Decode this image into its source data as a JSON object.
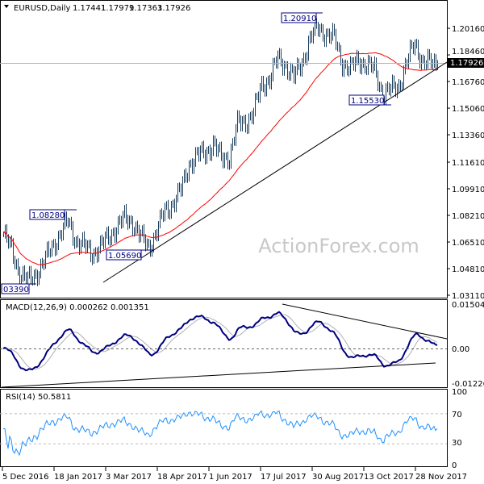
{
  "header": {
    "symbol": "EURUSD,Daily",
    "open": "1.17441",
    "high": "1.17979",
    "low": "1.17363",
    "close": "1.17926"
  },
  "watermark": "ActionForex.com",
  "current_price_label": "1.17926",
  "annotations": [
    {
      "label": "1.20910",
      "date": "Sep 2017"
    },
    {
      "label": "1.08280",
      "date": "Feb 2017"
    },
    {
      "label": "1.05690",
      "date": "Apr 2017"
    },
    {
      "label": "03390",
      "date": "Jan 2017"
    },
    {
      "label": "1.15530",
      "date": "Nov 2017"
    }
  ],
  "colors": {
    "bars": "#1b3f5e",
    "ma": "#ff0000",
    "macd": "#000080",
    "signal": "#b0b0b0",
    "rsi": "#1e90ff",
    "trendline": "#000000"
  },
  "chart_data": [
    {
      "type": "ohlc",
      "title": "EURUSD,Daily",
      "ylim": [
        1.0311,
        1.2185
      ],
      "y_ticks": [
        "1.20160",
        "1.18460",
        "1.16760",
        "1.15060",
        "1.13360",
        "1.11610",
        "1.09910",
        "1.08210",
        "1.06510",
        "1.04810",
        "1.03110"
      ],
      "x_ticks": [
        "5 Dec 2016",
        "18 Jan 2017",
        "3 Mar 2017",
        "18 Apr 2017",
        "1 Jun 2017",
        "17 Jul 2017",
        "30 Aug 2017",
        "13 Oct 2017",
        "28 Nov 2017"
      ],
      "weekly_closes": [
        1.07,
        1.06,
        1.045,
        1.04,
        1.045,
        1.052,
        1.062,
        1.07,
        1.078,
        1.066,
        1.062,
        1.058,
        1.062,
        1.068,
        1.075,
        1.08,
        1.078,
        1.068,
        1.062,
        1.072,
        1.085,
        1.09,
        1.098,
        1.115,
        1.12,
        1.122,
        1.128,
        1.118,
        1.12,
        1.14,
        1.142,
        1.148,
        1.165,
        1.17,
        1.182,
        1.178,
        1.17,
        1.18,
        1.195,
        1.202,
        1.198,
        1.195,
        1.18,
        1.175,
        1.182,
        1.178,
        1.175,
        1.16,
        1.162,
        1.165,
        1.18,
        1.192,
        1.18,
        1.179
      ],
      "overlays": [
        "moving average (red)",
        "rising trendline"
      ]
    },
    {
      "type": "line",
      "title": "MACD(12,26,9) 0.000262 0.001351",
      "ylim": [
        -0.01226,
        0.01504
      ],
      "y_ticks": [
        "0.01504",
        "0.00",
        "-0.01226"
      ],
      "series": [
        {
          "name": "MACD"
        },
        {
          "name": "Signal"
        }
      ]
    },
    {
      "type": "line",
      "title": "RSI(14) 50.5811",
      "ylim": [
        0,
        100
      ],
      "y_ticks": [
        "100",
        "70",
        "30",
        "0"
      ],
      "levels": [
        70,
        30
      ]
    }
  ]
}
